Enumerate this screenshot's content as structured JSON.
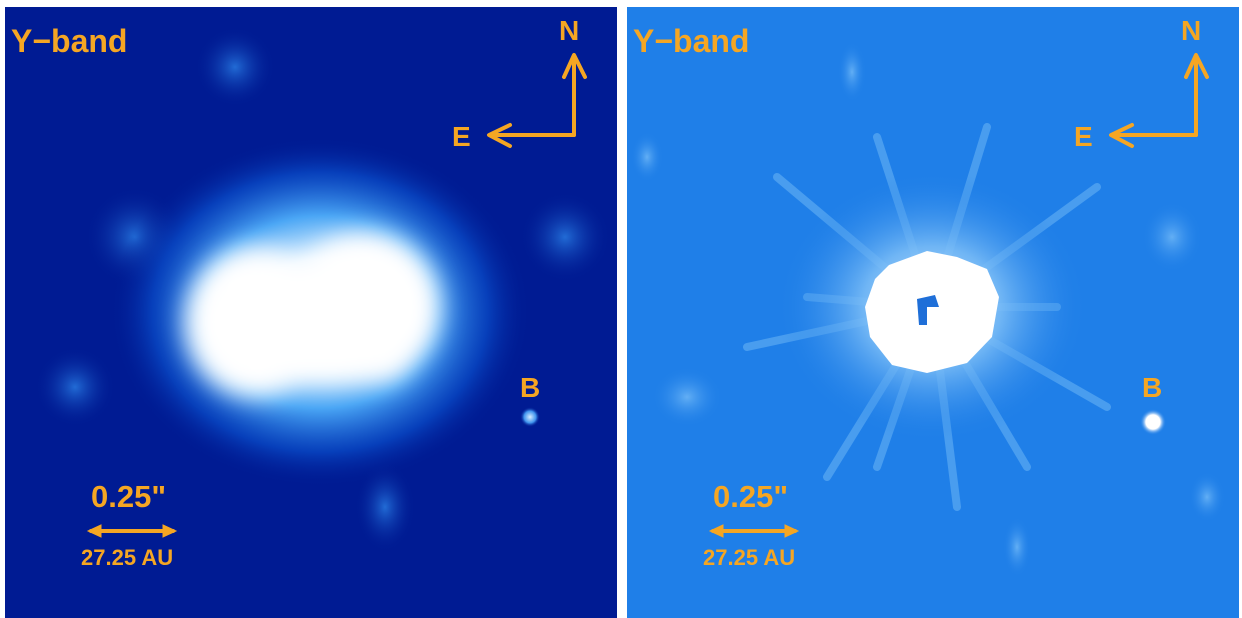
{
  "panels": [
    {
      "id": "left",
      "band_label": "Y−band",
      "north_label": "N",
      "east_label": "E",
      "companion_label": "B",
      "scale_arcsec_label": "0.25\"",
      "scale_au_label": "27.25 AU",
      "colors": {
        "background": "#001b93",
        "halo": "#0a5fd8",
        "core": "#ffffff",
        "annotation": "#f5a623"
      }
    },
    {
      "id": "right",
      "band_label": "Y−band",
      "north_label": "N",
      "east_label": "E",
      "companion_label": "B",
      "scale_arcsec_label": "0.25\"",
      "scale_au_label": "27.25 AU",
      "colors": {
        "background": "#1f7fe8",
        "halo": "#5eaaf4",
        "core": "#ffffff",
        "annotation": "#f5a623"
      }
    }
  ]
}
